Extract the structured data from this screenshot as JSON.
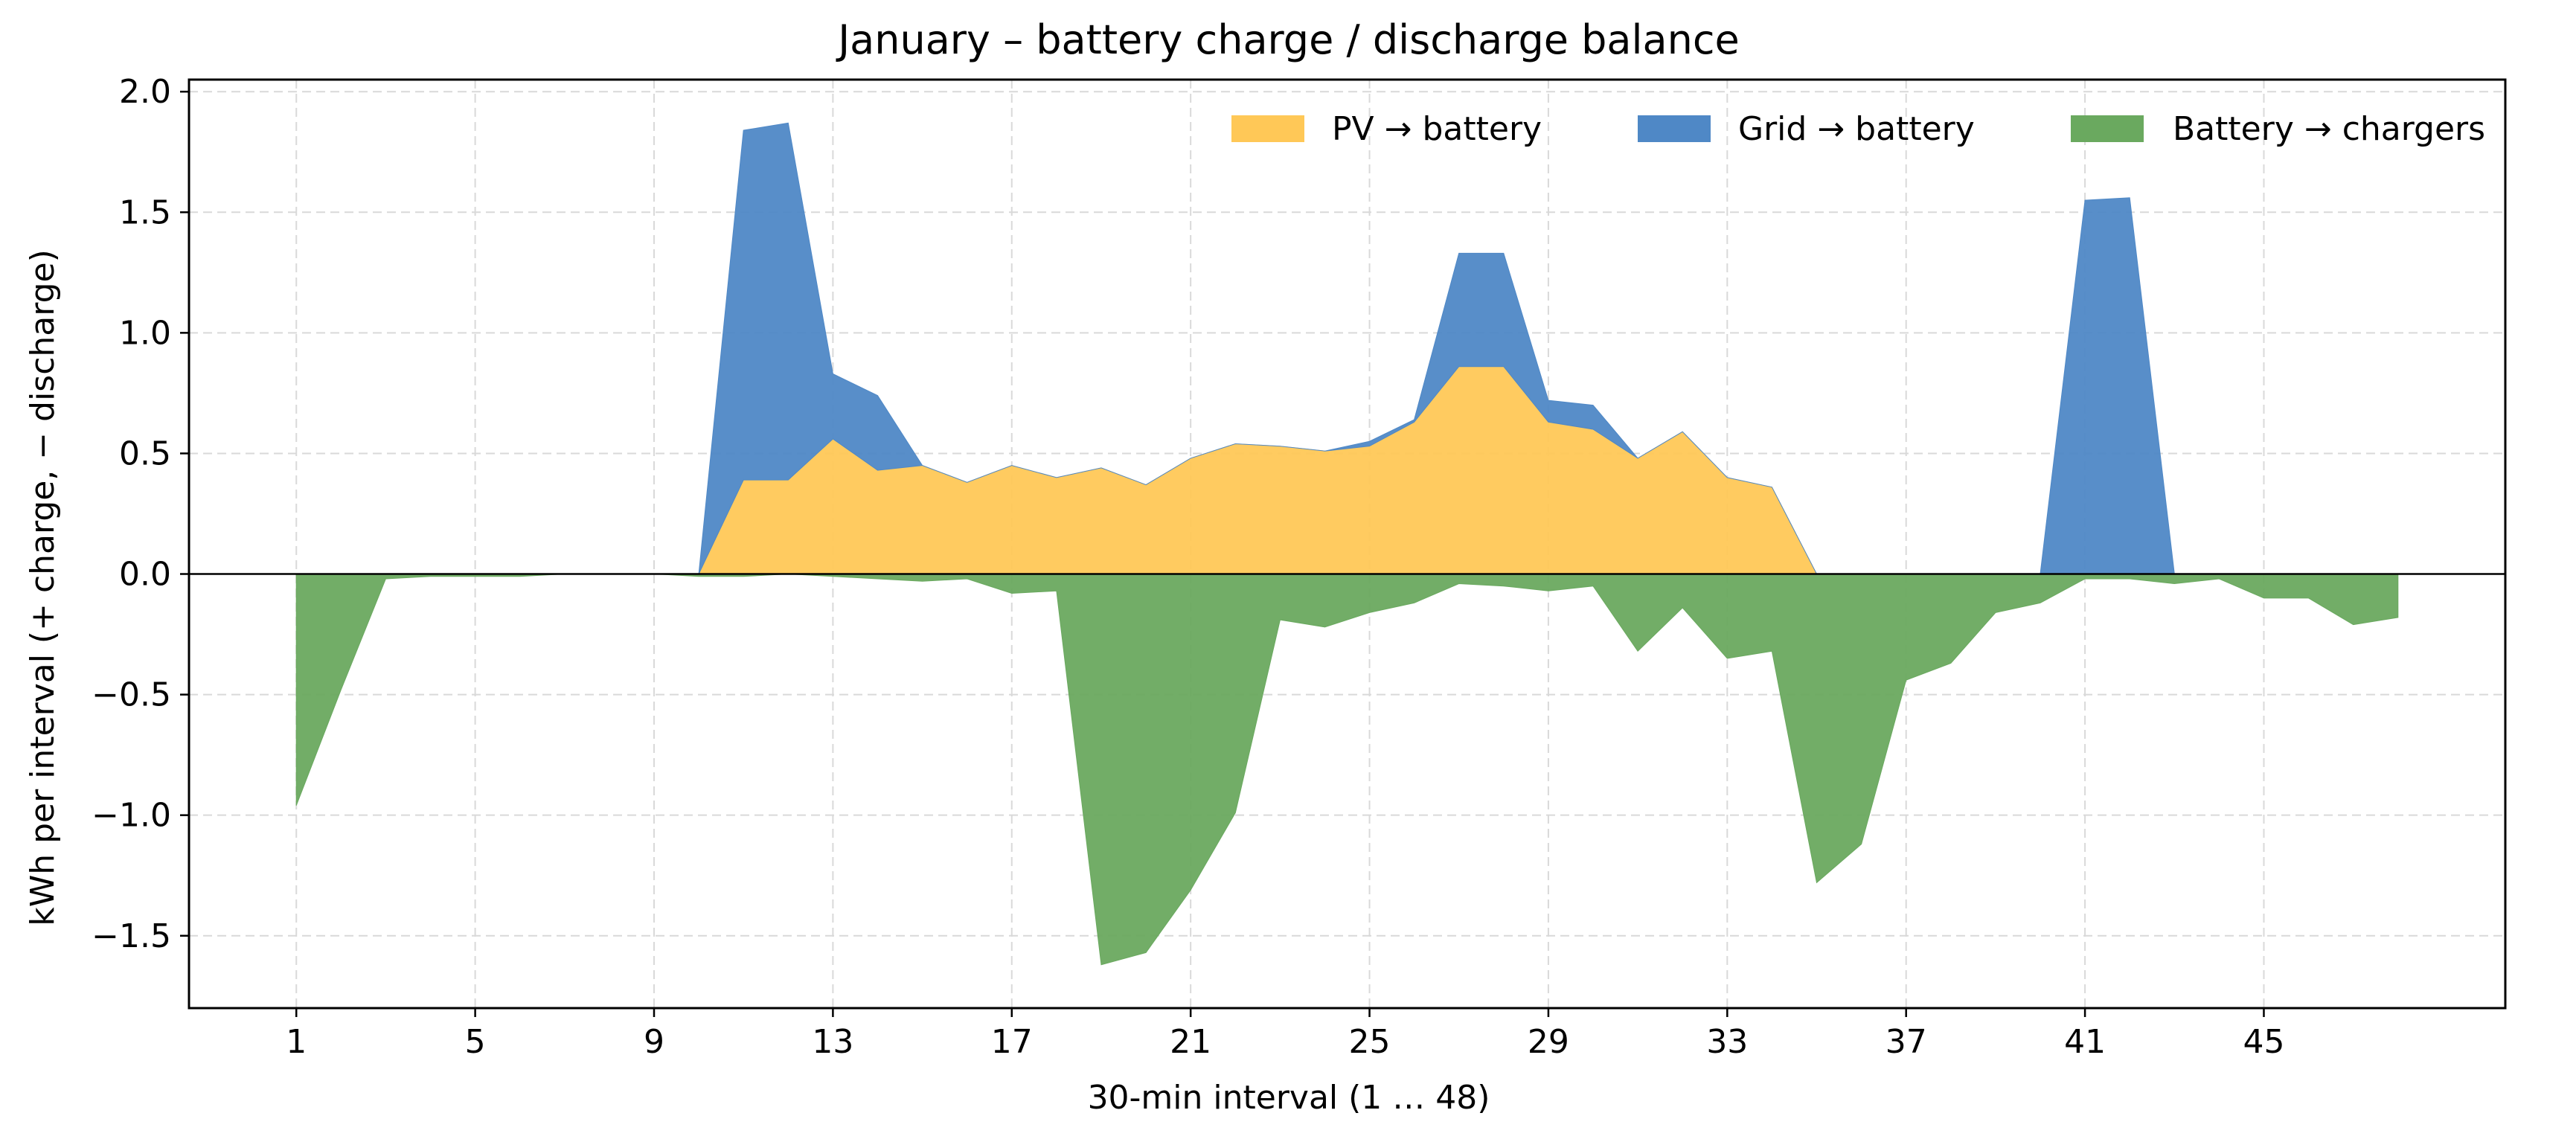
{
  "chart_data": {
    "type": "area",
    "title": "January – battery charge / discharge balance",
    "xlabel": "30-min interval (1 … 48)",
    "ylabel": "kWh per interval (+ charge, − discharge)",
    "xlim": [
      -1.4,
      50.4
    ],
    "ylim": [
      -1.8,
      2.05
    ],
    "x_ticks": [
      1,
      5,
      9,
      13,
      17,
      21,
      25,
      29,
      33,
      37,
      41,
      45
    ],
    "x_tick_labels": [
      "1",
      "5",
      "9",
      "13",
      "17",
      "21",
      "25",
      "29",
      "33",
      "37",
      "41",
      "45"
    ],
    "y_ticks": [
      -1.5,
      -1.0,
      -0.5,
      0.0,
      0.5,
      1.0,
      1.5,
      2.0
    ],
    "y_tick_labels": [
      "−1.5",
      "−1.0",
      "−0.5",
      "0.0",
      "0.5",
      "1.0",
      "1.5",
      "2.0"
    ],
    "grid": true,
    "legend_position": "top-right",
    "x": [
      1,
      2,
      3,
      4,
      5,
      6,
      7,
      8,
      9,
      10,
      11,
      12,
      13,
      14,
      15,
      16,
      17,
      18,
      19,
      20,
      21,
      22,
      23,
      24,
      25,
      26,
      27,
      28,
      29,
      30,
      31,
      32,
      33,
      34,
      35,
      36,
      37,
      38,
      39,
      40,
      41,
      42,
      43,
      44,
      45,
      46,
      47,
      48
    ],
    "series": [
      {
        "name": "PV → battery",
        "color": "#ffc857",
        "stack": "positive",
        "values": [
          0,
          0,
          0,
          0,
          0,
          0,
          0,
          0,
          0,
          0,
          0.39,
          0.39,
          0.56,
          0.43,
          0.45,
          0.38,
          0.45,
          0.4,
          0.44,
          0.37,
          0.48,
          0.54,
          0.53,
          0.51,
          0.53,
          0.63,
          0.86,
          0.86,
          0.63,
          0.6,
          0.48,
          0.59,
          0.4,
          0.36,
          0,
          0,
          0,
          0,
          0,
          0,
          0,
          0,
          0,
          0,
          0,
          0,
          0,
          0
        ]
      },
      {
        "name": "Grid → battery",
        "color": "#4f88c6",
        "stack": "positive",
        "values": [
          0,
          0,
          0,
          0,
          0,
          0,
          0,
          0,
          0,
          0,
          1.45,
          1.48,
          0.27,
          0.31,
          0,
          0,
          0,
          0,
          0,
          0,
          0,
          0,
          0,
          0,
          0.02,
          0.01,
          0.47,
          0.47,
          0.09,
          0.1,
          0,
          0,
          0,
          0,
          0,
          0,
          0,
          0,
          0,
          0,
          1.55,
          1.56,
          0,
          0,
          0,
          0,
          0,
          0
        ]
      },
      {
        "name": "Battery → chargers",
        "color": "#6aa95f",
        "stack": "negative",
        "values": [
          -0.96,
          -0.48,
          -0.02,
          -0.01,
          -0.01,
          -0.01,
          0,
          0,
          0,
          -0.01,
          -0.01,
          0,
          -0.01,
          -0.02,
          -0.03,
          -0.02,
          -0.08,
          -0.07,
          -1.62,
          -1.57,
          -1.31,
          -0.99,
          -0.19,
          -0.22,
          -0.16,
          -0.12,
          -0.04,
          -0.05,
          -0.07,
          -0.05,
          -0.32,
          -0.14,
          -0.35,
          -0.32,
          -1.28,
          -1.12,
          -0.44,
          -0.37,
          -0.16,
          -0.12,
          -0.02,
          -0.02,
          -0.04,
          -0.02,
          -0.1,
          -0.1,
          -0.21,
          -0.18
        ]
      }
    ]
  }
}
